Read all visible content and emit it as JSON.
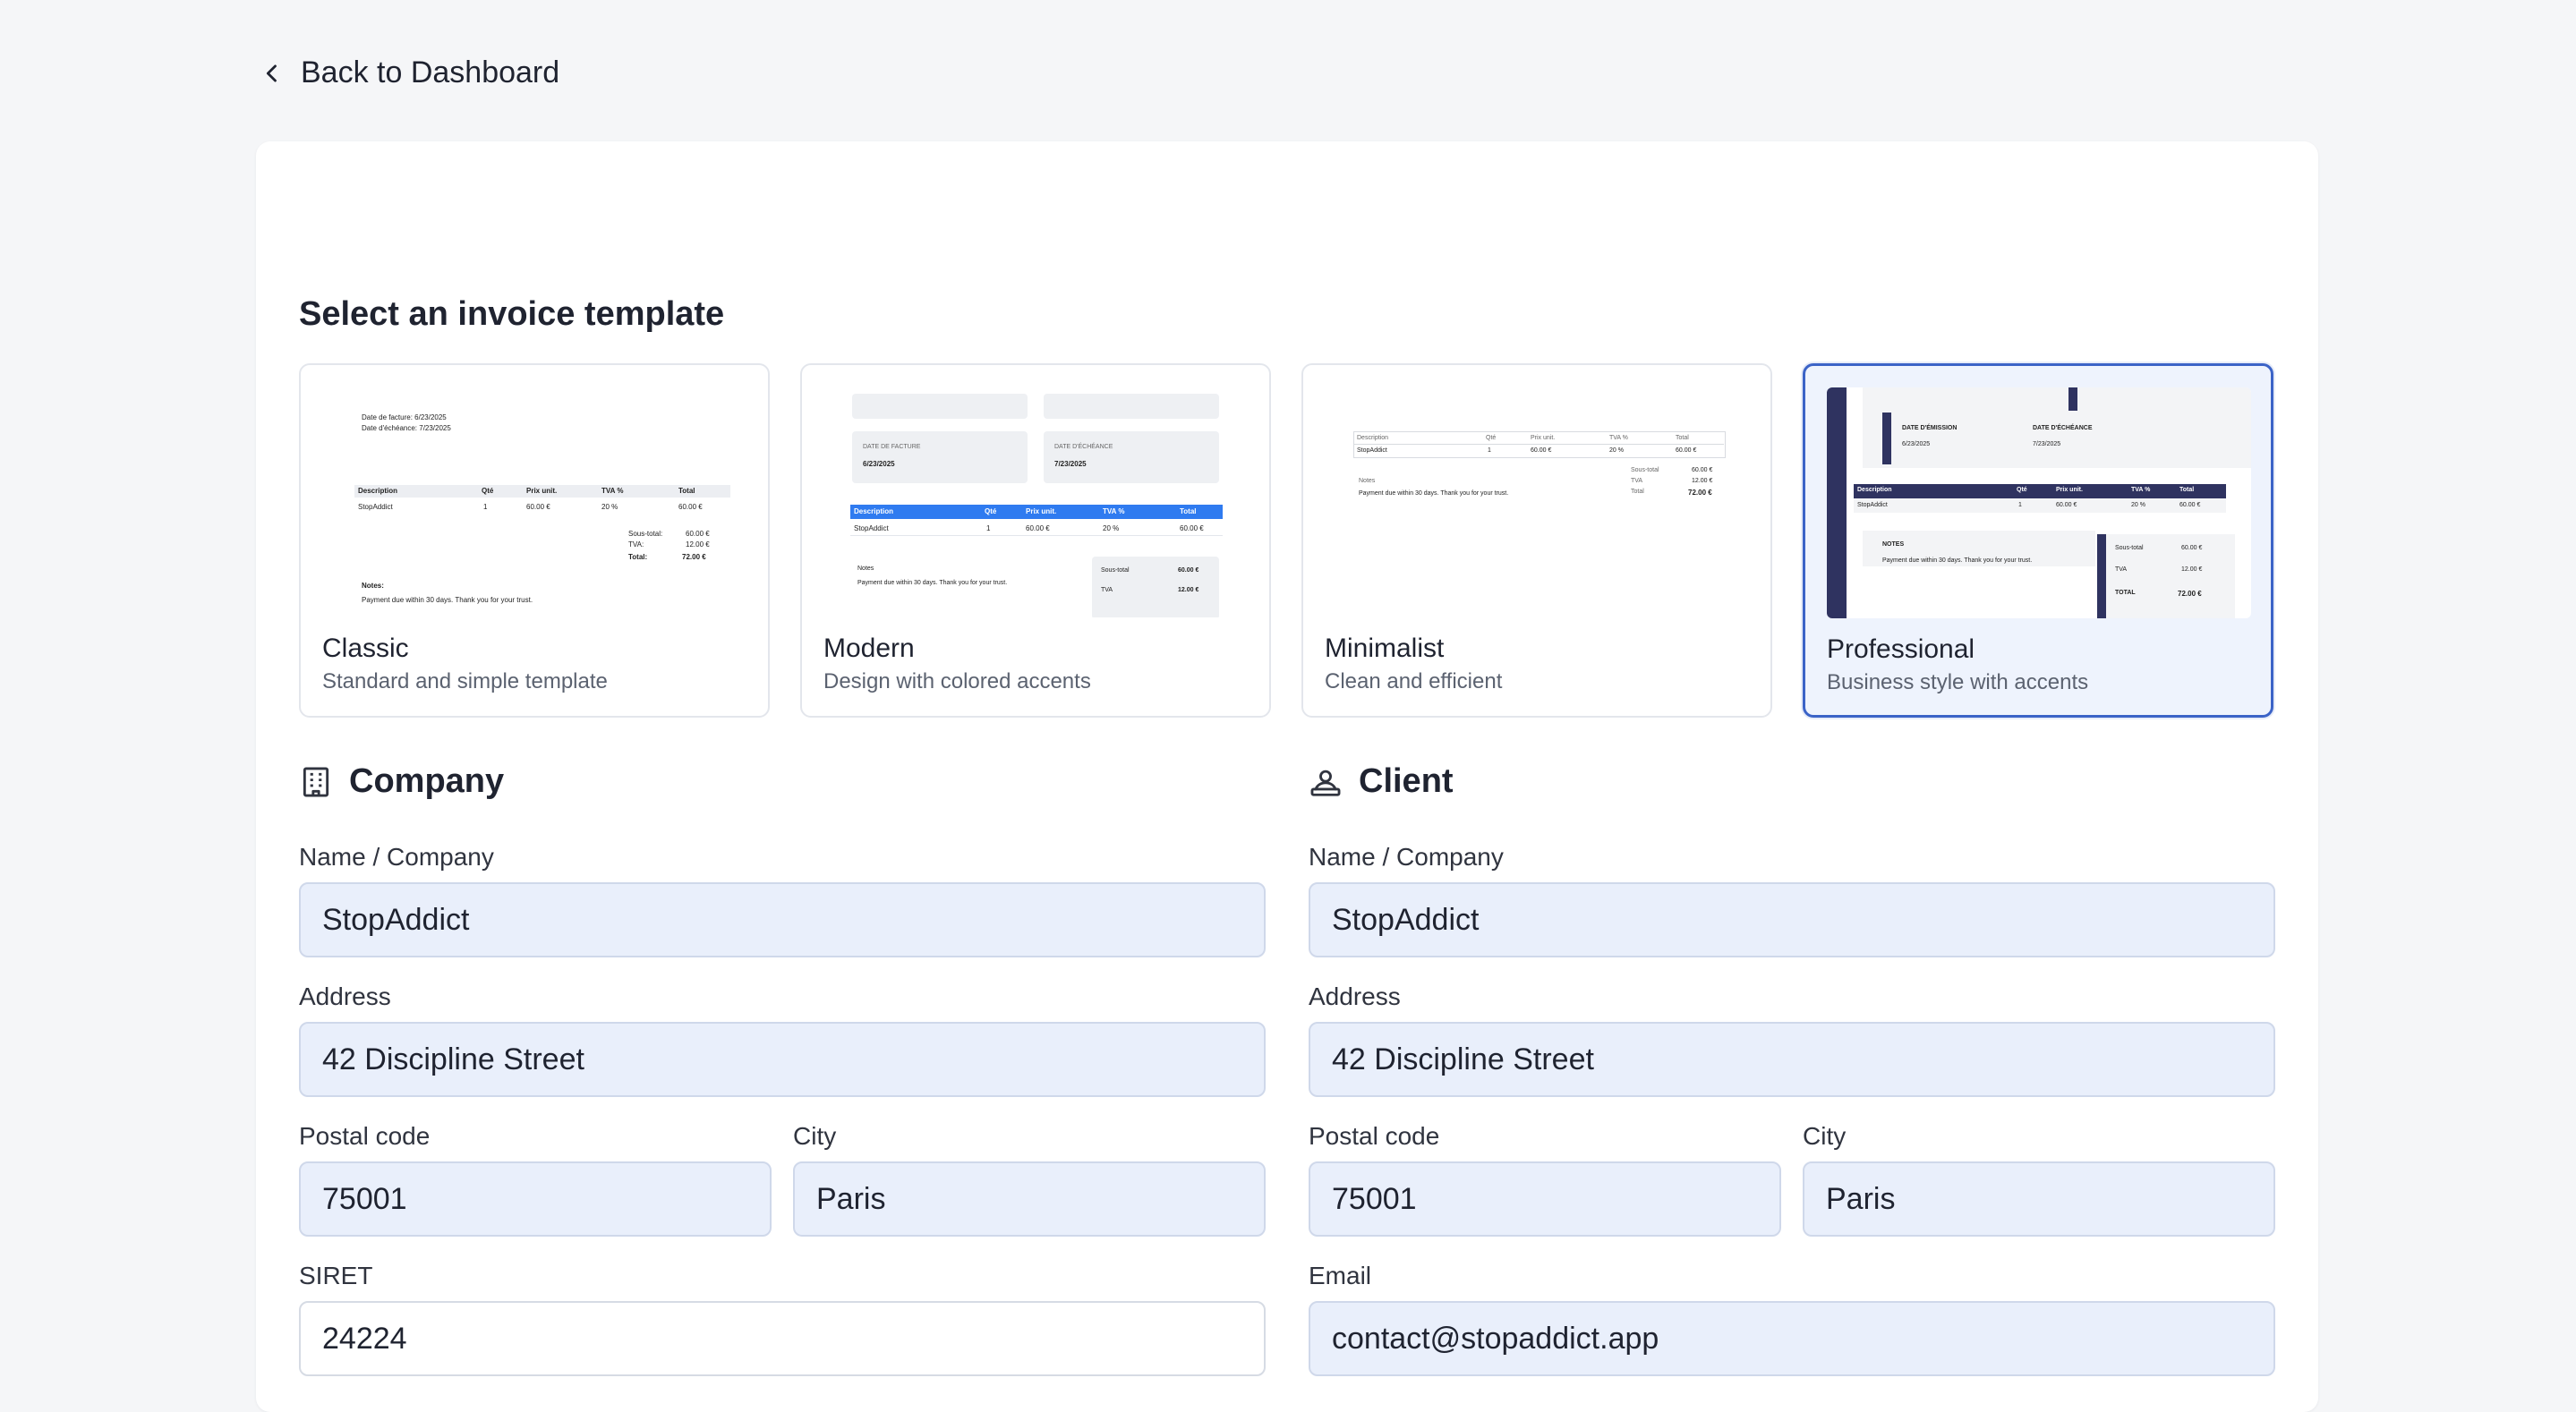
{
  "nav": {
    "back_label": "Back to Dashboard"
  },
  "templates": {
    "title": "Select an invoice template",
    "items": [
      {
        "name": "Classic",
        "desc": "Standard and simple template"
      },
      {
        "name": "Modern",
        "desc": "Design with colored accents"
      },
      {
        "name": "Minimalist",
        "desc": "Clean and efficient"
      },
      {
        "name": "Professional",
        "desc": "Business style with accents",
        "selected": true
      }
    ],
    "preview": {
      "invoice_date_line": "Date de facture: 6/23/2025",
      "due_date_line": "Date d'échéance: 7/23/2025",
      "date_facture_caps": "DATE DE FACTURE",
      "date_echeance_caps": "DATE D'ÉCHÉANCE",
      "date_emission_caps": "DATE D'ÉMISSION",
      "invoice_date": "6/23/2025",
      "due_date": "7/23/2025",
      "col_description": "Description",
      "col_qty": "Qté",
      "col_unit_price": "Prix unit.",
      "col_vat": "TVA %",
      "col_total": "Total",
      "row_description": "StopAddict",
      "row_qty": "1",
      "row_unit_price": "60.00 €",
      "row_vat": "20 %",
      "row_total": "60.00 €",
      "subtotal_label": "Sous-total",
      "subtotal_label_colon": "Sous-total:",
      "subtotal_value": "60.00 €",
      "vat_label": "TVA",
      "vat_label_colon": "TVA:",
      "vat_value": "12.00 €",
      "total_label_colon": "Total:",
      "total_label_caps": "TOTAL",
      "total_value": "72.00 €",
      "notes_label": "Notes:",
      "notes_label_plain": "Notes",
      "notes_label_caps": "NOTES",
      "notes_text": "Payment due within 30 days. Thank you for your trust."
    }
  },
  "company": {
    "title": "Company",
    "name_label": "Name / Company",
    "name_value": "StopAddict",
    "address_label": "Address",
    "address_value": "42 Discipline Street",
    "postal_label": "Postal code",
    "postal_value": "75001",
    "city_label": "City",
    "city_value": "Paris",
    "siret_label": "SIRET",
    "siret_value": "24224"
  },
  "client": {
    "title": "Client",
    "name_label": "Name / Company",
    "name_value": "StopAddict",
    "address_label": "Address",
    "address_value": "42 Discipline Street",
    "postal_label": "Postal code",
    "postal_value": "75001",
    "city_label": "City",
    "city_value": "Paris",
    "email_label": "Email",
    "email_value": "contact@stopaddict.app"
  },
  "colors": {
    "accent": "#3b63c7",
    "modern_blue": "#2f7bf0",
    "professional_navy": "#2f3360",
    "field_bg": "#e9effb"
  }
}
